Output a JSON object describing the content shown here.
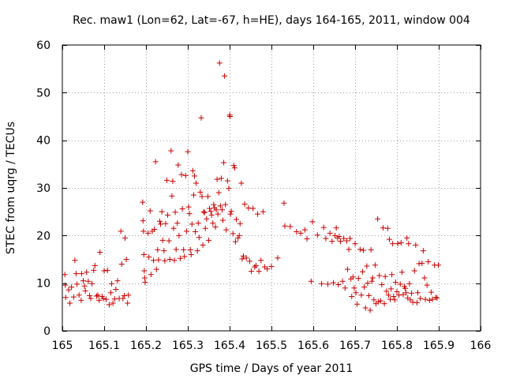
{
  "chart_data": {
    "type": "scatter",
    "title": "Rec. maw1 (Lon=62, Lat=-67, h=HE), days 164-165, 2011, window 004",
    "xlabel": "GPS time / Days of year 2011",
    "ylabel": "STEC from uqrg / TECUs",
    "xlim": [
      165,
      166
    ],
    "ylim": [
      0,
      60
    ],
    "xticks": [
      "165",
      "165.1",
      "165.2",
      "165.3",
      "165.4",
      "165.5",
      "165.6",
      "165.7",
      "165.8",
      "165.9",
      "166"
    ],
    "yticks": [
      "0",
      "10",
      "20",
      "30",
      "40",
      "50",
      "60"
    ],
    "grid": true,
    "marker": "plus",
    "color": "#cc0000",
    "series": [
      {
        "points": [
          [
            165.006,
            11.8
          ],
          [
            165.007,
            9.6
          ],
          [
            165.008,
            7.0
          ],
          [
            165.015,
            8.6
          ],
          [
            165.018,
            5.8
          ],
          [
            165.022,
            9.2
          ],
          [
            165.027,
            7.1
          ],
          [
            165.03,
            14.8
          ],
          [
            165.033,
            12.0
          ],
          [
            165.035,
            9.8
          ],
          [
            165.04,
            7.5
          ],
          [
            165.045,
            6.4
          ],
          [
            165.046,
            12.0
          ],
          [
            165.05,
            10.5
          ],
          [
            165.053,
            9.4
          ],
          [
            165.055,
            8.4
          ],
          [
            165.058,
            12.3
          ],
          [
            165.062,
            10.4
          ],
          [
            165.065,
            7.4
          ],
          [
            165.068,
            6.8
          ],
          [
            165.071,
            9.9
          ],
          [
            165.075,
            12.7
          ],
          [
            165.078,
            13.7
          ],
          [
            165.082,
            7.3
          ],
          [
            165.085,
            7.5
          ],
          [
            165.088,
            6.4
          ],
          [
            165.09,
            16.5
          ],
          [
            165.095,
            7.2
          ],
          [
            165.098,
            6.8
          ],
          [
            165.1,
            12.6
          ],
          [
            165.105,
            6.6
          ],
          [
            165.108,
            12.7
          ],
          [
            165.112,
            5.5
          ],
          [
            165.116,
            8.0
          ],
          [
            165.118,
            9.9
          ],
          [
            165.121,
            5.8
          ],
          [
            165.125,
            6.7
          ],
          [
            165.128,
            8.7
          ],
          [
            165.132,
            10.5
          ],
          [
            165.136,
            6.8
          ],
          [
            165.14,
            20.9
          ],
          [
            165.142,
            14.0
          ],
          [
            165.145,
            6.8
          ],
          [
            165.148,
            7.4
          ],
          [
            165.15,
            19.5
          ],
          [
            165.153,
            15.0
          ],
          [
            165.156,
            5.8
          ],
          [
            165.158,
            7.5
          ],
          [
            165.192,
            27.0
          ],
          [
            165.193,
            23.1
          ],
          [
            165.194,
            20.9
          ],
          [
            165.195,
            16.0
          ],
          [
            165.196,
            12.6
          ],
          [
            165.197,
            11.1
          ],
          [
            165.198,
            10.2
          ],
          [
            165.205,
            20.5
          ],
          [
            165.207,
            15.5
          ],
          [
            165.21,
            25.2
          ],
          [
            165.212,
            11.8
          ],
          [
            165.215,
            20.9
          ],
          [
            165.218,
            14.8
          ],
          [
            165.22,
            21.3
          ],
          [
            165.223,
            35.5
          ],
          [
            165.225,
            12.9
          ],
          [
            165.228,
            17.0
          ],
          [
            165.23,
            14.9
          ],
          [
            165.233,
            23.0
          ],
          [
            165.235,
            22.4
          ],
          [
            165.238,
            25.0
          ],
          [
            165.24,
            19.0
          ],
          [
            165.243,
            16.8
          ],
          [
            165.245,
            14.7
          ],
          [
            165.247,
            22.5
          ],
          [
            165.25,
            31.6
          ],
          [
            165.252,
            24.3
          ],
          [
            165.255,
            18.9
          ],
          [
            165.257,
            15.0
          ],
          [
            165.26,
            37.8
          ],
          [
            165.262,
            28.3
          ],
          [
            165.264,
            31.4
          ],
          [
            165.266,
            21.5
          ],
          [
            165.268,
            14.8
          ],
          [
            165.27,
            24.9
          ],
          [
            165.272,
            17.1
          ],
          [
            165.275,
            22.6
          ],
          [
            165.277,
            34.8
          ],
          [
            165.279,
            20.0
          ],
          [
            165.282,
            15.2
          ],
          [
            165.285,
            32.8
          ],
          [
            165.287,
            25.6
          ],
          [
            165.29,
            17.0
          ],
          [
            165.292,
            15.6
          ],
          [
            165.295,
            32.6
          ],
          [
            165.297,
            20.9
          ],
          [
            165.3,
            37.6
          ],
          [
            165.302,
            26.0
          ],
          [
            165.304,
            24.6
          ],
          [
            165.306,
            17.0
          ],
          [
            165.308,
            16.0
          ],
          [
            165.31,
            22.4
          ],
          [
            165.312,
            33.6
          ],
          [
            165.314,
            28.5
          ],
          [
            165.316,
            32.5
          ],
          [
            165.318,
            20.8
          ],
          [
            165.32,
            31.0
          ],
          [
            165.323,
            16.8
          ],
          [
            165.325,
            22.6
          ],
          [
            165.327,
            19.6
          ],
          [
            165.33,
            29.1
          ],
          [
            165.332,
            44.7
          ],
          [
            165.334,
            28.2
          ],
          [
            165.336,
            18.0
          ],
          [
            165.338,
            25.0
          ],
          [
            165.34,
            24.8
          ],
          [
            165.342,
            21.5
          ],
          [
            165.345,
            23.5
          ],
          [
            165.348,
            28.2
          ],
          [
            165.35,
            19.0
          ],
          [
            165.352,
            25.7
          ],
          [
            165.355,
            25.1
          ],
          [
            165.357,
            24.3
          ],
          [
            165.36,
            22.6
          ],
          [
            165.362,
            26.5
          ],
          [
            165.364,
            25.8
          ],
          [
            165.366,
            21.8
          ],
          [
            165.368,
            25.4
          ],
          [
            165.37,
            31.8
          ],
          [
            165.372,
            24.5
          ],
          [
            165.374,
            29.0
          ],
          [
            165.376,
            56.2
          ],
          [
            165.378,
            26.2
          ],
          [
            165.38,
            32.0
          ],
          [
            165.382,
            25.4
          ],
          [
            165.384,
            23.2
          ],
          [
            165.386,
            35.3
          ],
          [
            165.388,
            53.5
          ],
          [
            165.39,
            26.5
          ],
          [
            165.392,
            21.2
          ],
          [
            165.395,
            31.5
          ],
          [
            165.398,
            29.9
          ],
          [
            165.4,
            45.3
          ],
          [
            165.401,
            45.0
          ],
          [
            165.402,
            24.5
          ],
          [
            165.404,
            25.1
          ],
          [
            165.408,
            20.4
          ],
          [
            165.41,
            34.7
          ],
          [
            165.412,
            34.2
          ],
          [
            165.414,
            18.7
          ],
          [
            165.416,
            23.4
          ],
          [
            165.42,
            19.5
          ],
          [
            165.423,
            20.0
          ],
          [
            165.425,
            22.5
          ],
          [
            165.428,
            31.0
          ],
          [
            165.43,
            15.1
          ],
          [
            165.433,
            15.7
          ],
          [
            165.436,
            26.6
          ],
          [
            165.44,
            15.3
          ],
          [
            165.445,
            25.8
          ],
          [
            165.448,
            14.6
          ],
          [
            165.452,
            12.5
          ],
          [
            165.456,
            25.7
          ],
          [
            165.46,
            13.4
          ],
          [
            165.463,
            13.7
          ],
          [
            165.467,
            24.5
          ],
          [
            165.47,
            12.5
          ],
          [
            165.475,
            14.8
          ],
          [
            165.48,
            25.0
          ],
          [
            165.484,
            13.4
          ],
          [
            165.49,
            13.0
          ],
          [
            165.5,
            13.5
          ],
          [
            165.515,
            15.3
          ],
          [
            165.53,
            26.8
          ],
          [
            165.532,
            22.0
          ],
          [
            165.545,
            21.9
          ],
          [
            165.56,
            20.8
          ],
          [
            165.57,
            20.5
          ],
          [
            165.58,
            21.2
          ],
          [
            165.585,
            19.3
          ],
          [
            165.595,
            10.4
          ],
          [
            165.598,
            22.9
          ],
          [
            165.61,
            20.1
          ],
          [
            165.62,
            9.9
          ],
          [
            165.625,
            21.7
          ],
          [
            165.63,
            19.4
          ],
          [
            165.635,
            9.8
          ],
          [
            165.64,
            20.5
          ],
          [
            165.645,
            18.8
          ],
          [
            165.648,
            10.1
          ],
          [
            165.652,
            20.0
          ],
          [
            165.655,
            21.6
          ],
          [
            165.658,
            19.5
          ],
          [
            165.66,
            9.7
          ],
          [
            165.662,
            19.8
          ],
          [
            165.665,
            18.8
          ],
          [
            165.67,
            10.4
          ],
          [
            165.673,
            19.4
          ],
          [
            165.676,
            9.0
          ],
          [
            165.68,
            18.9
          ],
          [
            165.682,
            12.9
          ],
          [
            165.685,
            17.1
          ],
          [
            165.688,
            19.4
          ],
          [
            165.69,
            10.9
          ],
          [
            165.692,
            7.2
          ],
          [
            165.695,
            11.3
          ],
          [
            165.698,
            9.0
          ],
          [
            165.7,
            18.3
          ],
          [
            165.702,
            8.0
          ],
          [
            165.705,
            5.6
          ],
          [
            165.708,
            11.0
          ],
          [
            165.712,
            17.1
          ],
          [
            165.715,
            7.5
          ],
          [
            165.718,
            12.4
          ],
          [
            165.72,
            16.9
          ],
          [
            165.722,
            9.2
          ],
          [
            165.725,
            4.8
          ],
          [
            165.728,
            13.6
          ],
          [
            165.73,
            10.0
          ],
          [
            165.733,
            7.4
          ],
          [
            165.736,
            4.3
          ],
          [
            165.738,
            17.0
          ],
          [
            165.74,
            10.4
          ],
          [
            165.742,
            11.1
          ],
          [
            165.745,
            6.5
          ],
          [
            165.748,
            13.8
          ],
          [
            165.75,
            5.7
          ],
          [
            165.754,
            23.5
          ],
          [
            165.756,
            6.1
          ],
          [
            165.758,
            11.6
          ],
          [
            165.761,
            6.3
          ],
          [
            165.764,
            9.7
          ],
          [
            165.767,
            21.6
          ],
          [
            165.77,
            5.7
          ],
          [
            165.772,
            11.4
          ],
          [
            165.775,
            8.3
          ],
          [
            165.778,
            21.5
          ],
          [
            165.78,
            7.5
          ],
          [
            165.782,
            19.2
          ],
          [
            165.784,
            6.6
          ],
          [
            165.786,
            8.8
          ],
          [
            165.788,
            11.8
          ],
          [
            165.79,
            18.3
          ],
          [
            165.792,
            7.2
          ],
          [
            165.795,
            6.5
          ],
          [
            165.797,
            10.2
          ],
          [
            165.8,
            8.2
          ],
          [
            165.802,
            18.3
          ],
          [
            165.805,
            7.5
          ],
          [
            165.808,
            9.8
          ],
          [
            165.81,
            18.5
          ],
          [
            165.812,
            12.3
          ],
          [
            165.815,
            7.6
          ],
          [
            165.818,
            9.3
          ],
          [
            165.82,
            8.9
          ],
          [
            165.822,
            8.0
          ],
          [
            165.824,
            19.5
          ],
          [
            165.826,
            6.9
          ],
          [
            165.828,
            18.3
          ],
          [
            165.83,
            9.9
          ],
          [
            165.832,
            6.5
          ],
          [
            165.835,
            7.9
          ],
          [
            165.838,
            6.0
          ],
          [
            165.842,
            12.6
          ],
          [
            165.845,
            18.0
          ],
          [
            165.848,
            5.9
          ],
          [
            165.85,
            8.0
          ],
          [
            165.853,
            14.1
          ],
          [
            165.856,
            6.8
          ],
          [
            165.86,
            14.2
          ],
          [
            165.863,
            16.8
          ],
          [
            165.866,
            11.1
          ],
          [
            165.868,
            6.6
          ],
          [
            165.872,
            9.6
          ],
          [
            165.875,
            14.5
          ],
          [
            165.878,
            6.4
          ],
          [
            165.882,
            8.1
          ],
          [
            165.885,
            6.6
          ],
          [
            165.89,
            13.8
          ],
          [
            165.893,
            7.0
          ],
          [
            165.896,
            6.9
          ],
          [
            165.899,
            13.8
          ]
        ]
      }
    ]
  }
}
